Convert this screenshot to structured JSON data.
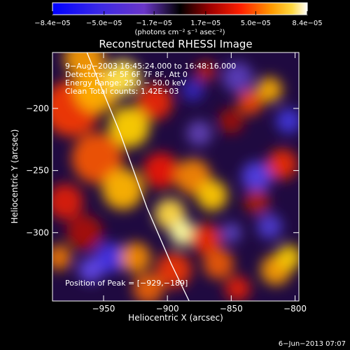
{
  "chart_data": {
    "type": "heatmap",
    "title": "Reconstructed RHESSI Image",
    "xlabel": "Heliocentric X (arcsec)",
    "ylabel": "Heliocentric Y (arcsec)",
    "xlim": [
      -990,
      -797
    ],
    "ylim": [
      -355,
      -155
    ],
    "x_ticks": [
      -950,
      -900,
      -850,
      -800
    ],
    "x_tick_labels": [
      "−950",
      "−900",
      "−850",
      "−800"
    ],
    "y_ticks": [
      -200,
      -250,
      -300
    ],
    "y_tick_labels": [
      "−200",
      "−250",
      "−300"
    ],
    "colorbar": {
      "range": [
        -8.4e-05,
        8.4e-05
      ],
      "tick_labels": [
        "−8.4e−05",
        "−5.0e−05",
        "−1.7e−05",
        "1.7e−05",
        "5.0e−05",
        "8.4e−05"
      ],
      "tick_values": [
        -8.4e-05,
        -5e-05,
        -1.7e-05,
        1.7e-05,
        5e-05,
        8.4e-05
      ],
      "units_label": "(photons cm⁻² s⁻¹ asec⁻²)"
    },
    "annotations": {
      "time_range": "9−Aug−2003 16:45:24.000 to 16:48:16.000",
      "detectors": "Detectors: 4F 5F 6F 7F 8F, Att 0",
      "energy": "Energy Range: 25.0 − 50.0 keV",
      "clean": "Clean     Total counts: 1.42E+03",
      "peak": "Position of Peak = [−929,−189]"
    },
    "peak_position": [
      -929,
      -189
    ],
    "limb_curve": [
      [
        -963,
        -155
      ],
      [
        -937,
        -220
      ],
      [
        -916,
        -280
      ],
      [
        -897,
        -325
      ],
      [
        -883,
        -355
      ]
    ],
    "grid": false,
    "legend": "none"
  },
  "footer": {
    "timestamp": "6−Jun−2013 07:07"
  }
}
